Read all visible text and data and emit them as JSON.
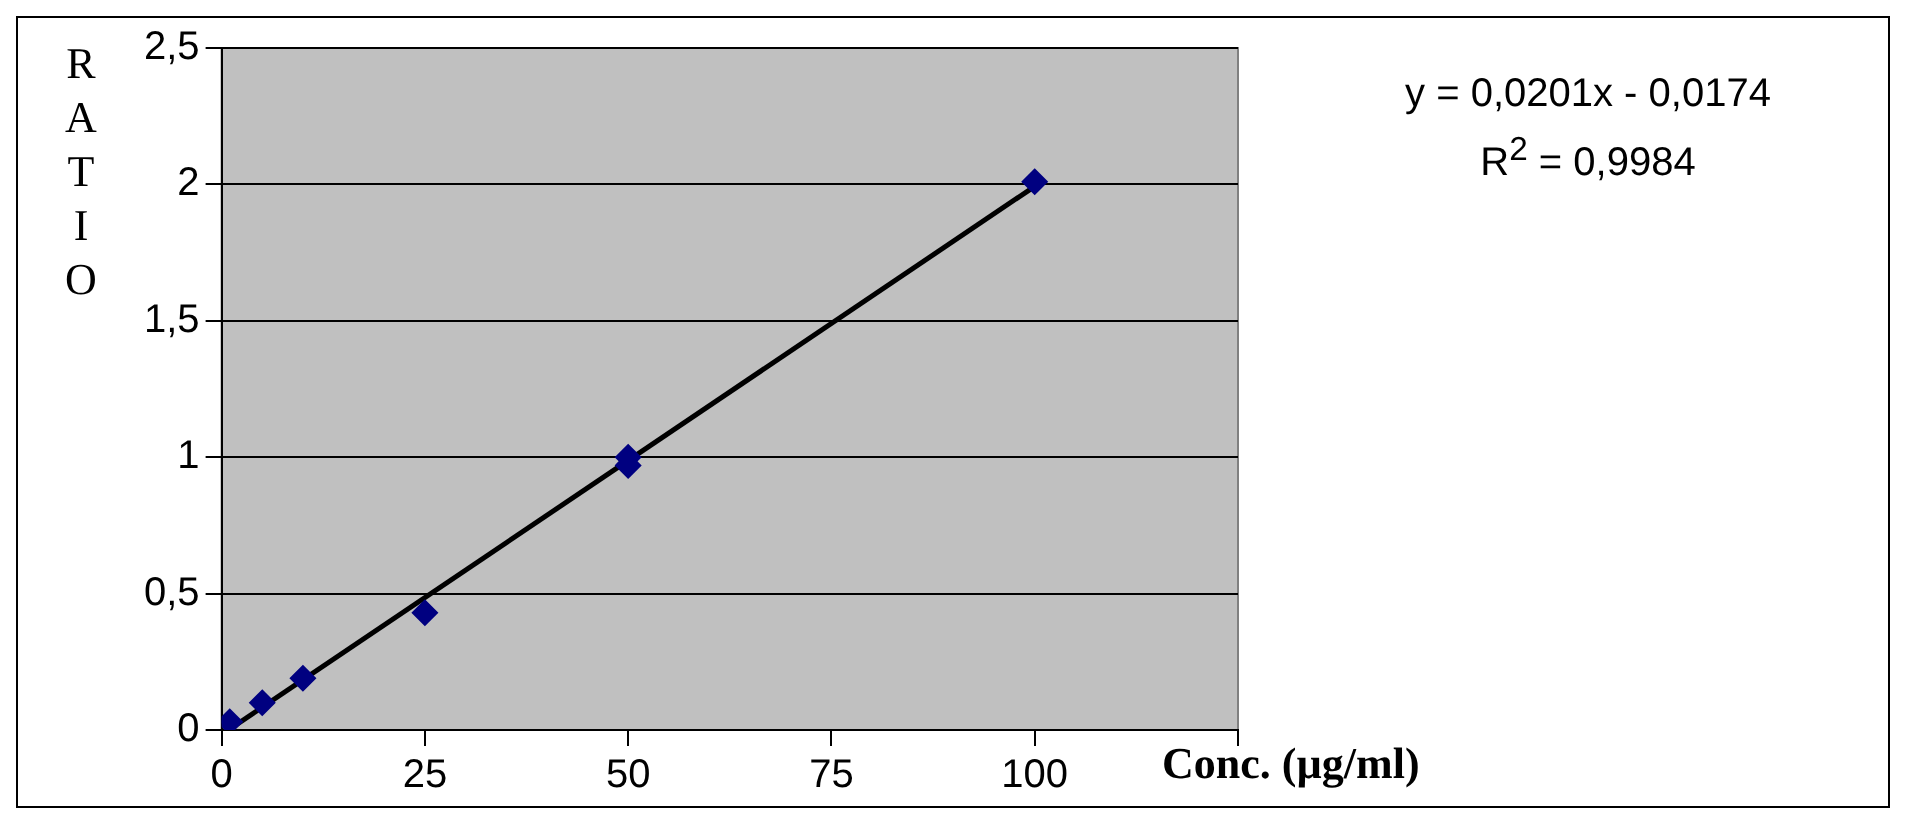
{
  "chart_data": {
    "type": "scatter",
    "xlabel": "Conc. (µg/ml)",
    "ylabel": "RATIO",
    "x": [
      1,
      5,
      10,
      25,
      50,
      50,
      100
    ],
    "series": [
      {
        "type": "scatter",
        "color": "#000080",
        "marker": "diamond",
        "values": [
          0.03,
          0.1,
          0.19,
          0.43,
          1.0,
          0.97,
          2.01
        ]
      },
      {
        "type": "line",
        "color": "#000000",
        "marker": "none",
        "line_style": "solid",
        "x": [
          1,
          100
        ],
        "values": [
          0.003,
          1.993
        ]
      }
    ],
    "xlim": [
      0,
      125
    ],
    "xticks": [
      0,
      25,
      50,
      75,
      100,
      {
        "value": 125,
        "label": null
      }
    ],
    "ylim": [
      0,
      2.5
    ],
    "yticks": [
      {
        "value": 0,
        "label": "0"
      },
      {
        "value": 0.5,
        "label": "0,5"
      },
      {
        "value": 1,
        "label": "1"
      },
      {
        "value": 1.5,
        "label": "1,5"
      },
      {
        "value": 2,
        "label": "2"
      },
      {
        "value": 2.5,
        "label": "2,5"
      }
    ],
    "grid": "y",
    "legend": false,
    "annotations": [
      "y = 0,0201x - 0,0174",
      "R$^{2}$ = 0,9984"
    ]
  }
}
